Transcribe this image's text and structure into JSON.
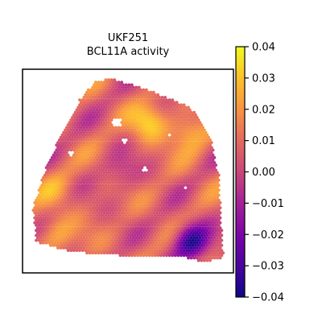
{
  "chart_data": {
    "type": "heatmap",
    "title": "UKF251\nBCL11A activity",
    "title_lines": [
      "UKF251",
      "BCL11A activity"
    ],
    "xlabel": "",
    "ylabel": "",
    "colormap": "plasma",
    "colorbar": {
      "vmin": -0.04,
      "vmax": 0.04,
      "ticks": [
        0.04,
        0.03,
        0.02,
        0.01,
        0.0,
        -0.01,
        -0.02,
        -0.03,
        -0.04
      ],
      "tick_labels": [
        "0.04",
        "0.03",
        "0.02",
        "0.01",
        "0.00",
        "−0.01",
        "−0.02",
        "−0.03",
        "−0.04"
      ]
    },
    "hotspots": [
      {
        "region": "upper-center",
        "value": 0.035
      },
      {
        "region": "upper-right",
        "value": 0.03
      },
      {
        "region": "lower-left",
        "value": 0.025
      },
      {
        "region": "left",
        "value": 0.02
      },
      {
        "region": "lower-right",
        "value": -0.04
      },
      {
        "region": "center",
        "value": -0.005
      }
    ],
    "grid": false,
    "legend": "colorbar-right"
  }
}
